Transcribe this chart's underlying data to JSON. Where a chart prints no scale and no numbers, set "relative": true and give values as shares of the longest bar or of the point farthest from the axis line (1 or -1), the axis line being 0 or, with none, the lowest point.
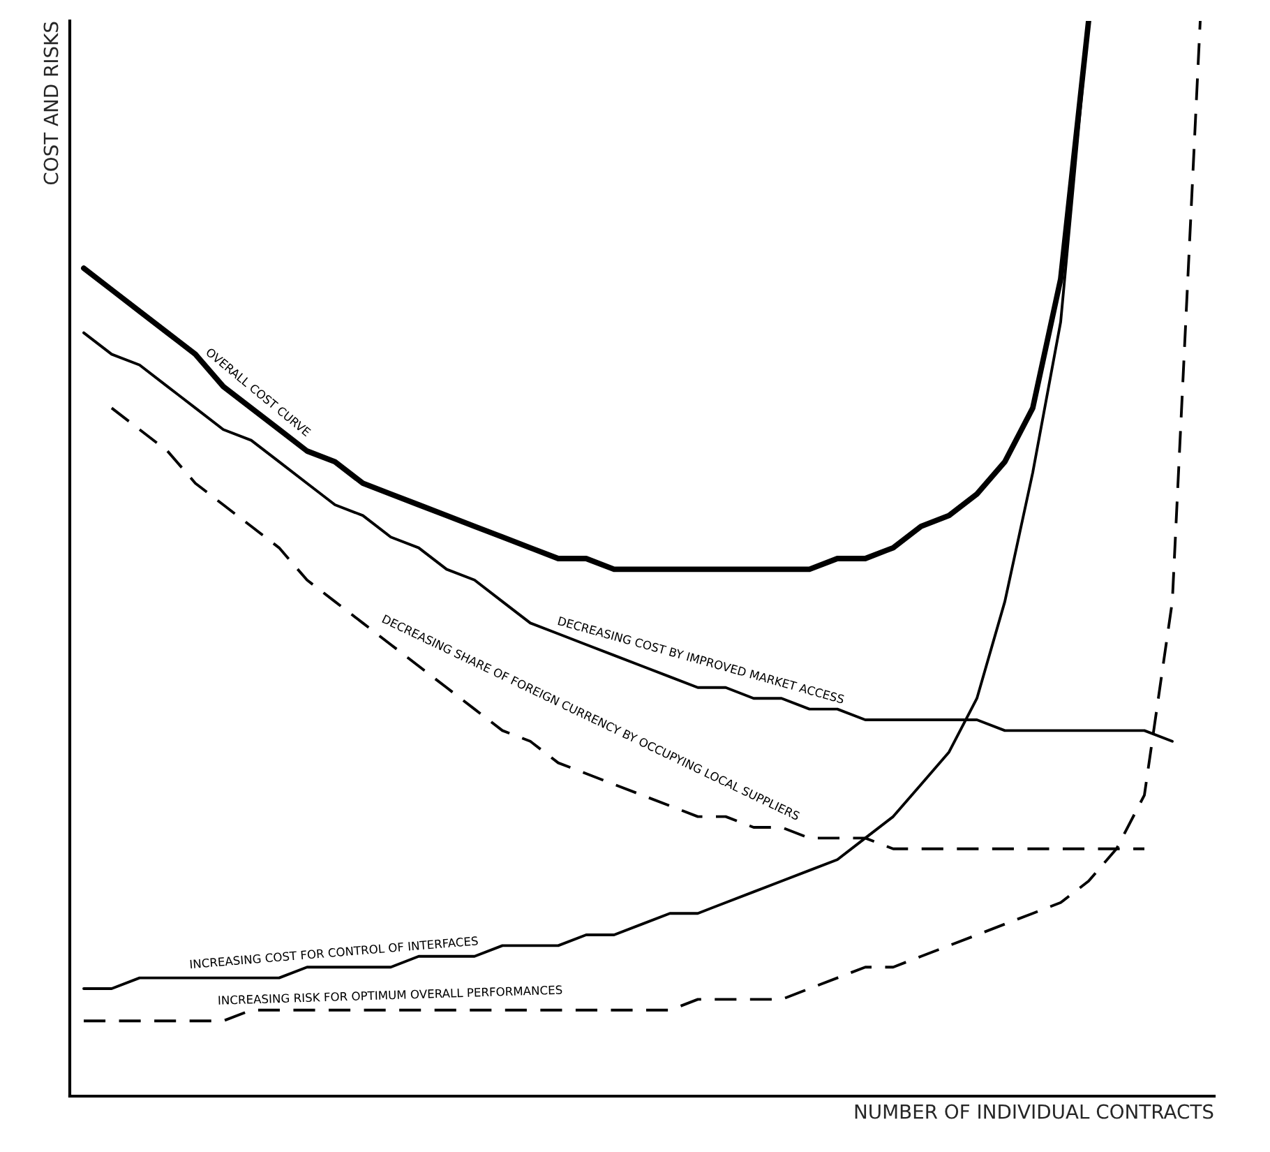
{
  "chart_data": {
    "type": "line",
    "relative": true,
    "xlabel": "NUMBER OF INDIVIDUAL CONTRACTS",
    "ylabel": "COST AND RISKS",
    "legend": false,
    "marker": "none",
    "categories": [
      null,
      null,
      null,
      null,
      null,
      null,
      null,
      null,
      null,
      null,
      null,
      null,
      null,
      null,
      null,
      null,
      null,
      null,
      null,
      null,
      null,
      null,
      null,
      null,
      null,
      null,
      null,
      null,
      null,
      null,
      null,
      null,
      null,
      null,
      null,
      null,
      null,
      null,
      null,
      null,
      null
    ],
    "series": [
      {
        "name": "OVERALL COST CURVE",
        "color": "#000000",
        "line_style": "solid",
        "values": [
          0.77,
          0.75,
          0.73,
          0.71,
          0.69,
          0.66,
          0.64,
          0.62,
          0.6,
          0.59,
          0.57,
          0.56,
          0.55,
          0.54,
          0.53,
          0.52,
          0.51,
          0.5,
          0.5,
          0.49,
          0.49,
          0.49,
          0.49,
          0.49,
          0.49,
          0.49,
          0.49,
          0.5,
          0.5,
          0.51,
          0.53,
          0.54,
          0.56,
          0.59,
          0.64,
          0.76,
          1.0,
          null,
          null,
          null,
          null
        ]
      },
      {
        "name": "DECREASING COST BY IMPROVED MARKET ACCESS",
        "color": "#000000",
        "line_style": "solid",
        "values": [
          0.71,
          0.69,
          0.68,
          0.66,
          0.64,
          0.62,
          0.61,
          0.59,
          0.57,
          0.55,
          0.54,
          0.52,
          0.51,
          0.49,
          0.48,
          0.46,
          0.44,
          0.43,
          0.42,
          0.41,
          0.4,
          0.39,
          0.38,
          0.38,
          0.37,
          0.37,
          0.36,
          0.36,
          0.35,
          0.35,
          0.35,
          0.35,
          0.35,
          0.34,
          0.34,
          0.34,
          0.34,
          0.34,
          0.34,
          0.33,
          null
        ]
      },
      {
        "name": "DECREASING SHARE OF FOREIGN CURRENCY BY OCCUPYING LOCAL SUPPLIERS",
        "color": "#000000",
        "line_style": "dashed",
        "values": [
          null,
          0.64,
          0.62,
          0.6,
          0.57,
          0.55,
          0.53,
          0.51,
          0.48,
          0.46,
          0.44,
          0.42,
          0.4,
          0.38,
          0.36,
          0.34,
          0.33,
          0.31,
          0.3,
          0.29,
          0.28,
          0.27,
          0.26,
          0.26,
          0.25,
          0.25,
          0.24,
          0.24,
          0.24,
          0.23,
          0.23,
          0.23,
          0.23,
          0.23,
          0.23,
          0.23,
          0.23,
          0.23,
          0.23,
          null,
          null
        ]
      },
      {
        "name": "INCREASING COST FOR CONTROL OF INTERFACES",
        "color": "#000000",
        "line_style": "solid",
        "values": [
          0.1,
          0.1,
          0.11,
          0.11,
          0.11,
          0.11,
          0.11,
          0.11,
          0.12,
          0.12,
          0.12,
          0.12,
          0.13,
          0.13,
          0.13,
          0.14,
          0.14,
          0.14,
          0.15,
          0.15,
          0.16,
          0.17,
          0.17,
          0.18,
          0.19,
          0.2,
          0.21,
          0.22,
          0.24,
          0.26,
          0.29,
          0.32,
          0.37,
          0.46,
          0.58,
          0.72,
          1.0,
          null,
          null,
          null,
          null
        ]
      },
      {
        "name": "INCREASING RISK FOR OPTIMUM OVERALL PERFORMANCES",
        "color": "#000000",
        "line_style": "dashed",
        "values": [
          0.07,
          0.07,
          0.07,
          0.07,
          0.07,
          0.07,
          0.08,
          0.08,
          0.08,
          0.08,
          0.08,
          0.08,
          0.08,
          0.08,
          0.08,
          0.08,
          0.08,
          0.08,
          0.08,
          0.08,
          0.08,
          0.08,
          0.09,
          0.09,
          0.09,
          0.09,
          0.1,
          0.11,
          0.12,
          0.12,
          0.13,
          0.14,
          0.15,
          0.16,
          0.17,
          0.18,
          0.2,
          0.23,
          0.28,
          0.46,
          1.0
        ]
      }
    ]
  }
}
